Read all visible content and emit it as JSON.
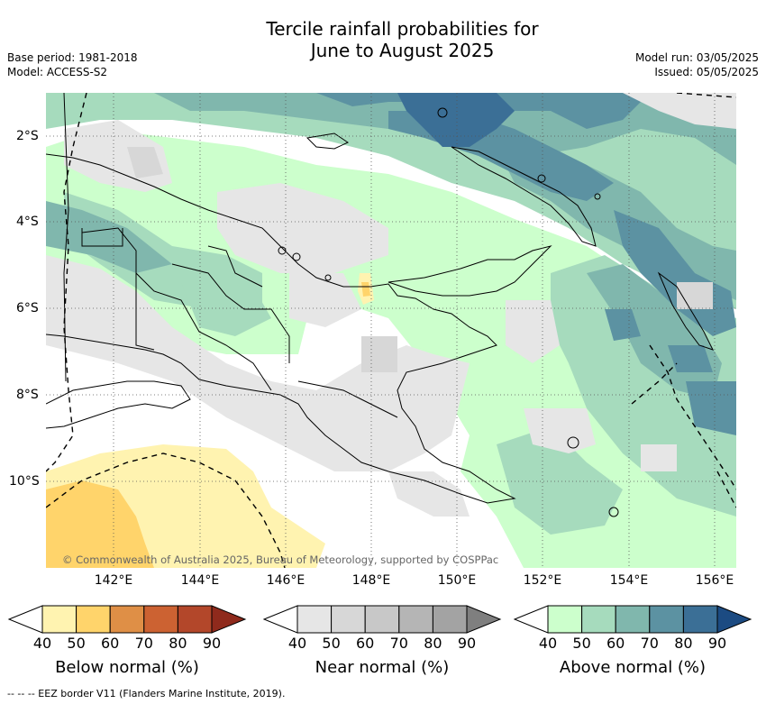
{
  "title_line1": "Tercile rainfall probabilities for",
  "title_line2": "June to August 2025",
  "base_period": "Base period: 1981-2018",
  "model": "Model: ACCESS-S2",
  "model_run": "Model run: 03/05/2025",
  "issued": "Issued: 05/05/2025",
  "copyright": "© Commonwealth of Australia 2025, Bureau of Meteorology, supported by COSPPac",
  "lat_ticks": [
    "2°S",
    "4°S",
    "6°S",
    "8°S",
    "10°S"
  ],
  "lon_ticks": [
    "142°E",
    "144°E",
    "146°E",
    "148°E",
    "150°E",
    "152°E",
    "154°E",
    "156°E"
  ],
  "colorbars": {
    "below": {
      "label": "Below normal (%)",
      "ticks": [
        "40",
        "50",
        "60",
        "70",
        "80",
        "90"
      ],
      "colors": [
        "#fff3b0",
        "#ffd46b",
        "#df8f46",
        "#cc6232",
        "#b3472a",
        "#8f2a1c"
      ]
    },
    "near": {
      "label": "Near normal (%)",
      "ticks": [
        "40",
        "50",
        "60",
        "70",
        "80",
        "90"
      ],
      "colors": [
        "#e6e6e6",
        "#d7d7d7",
        "#c8c8c8",
        "#b5b5b5",
        "#a3a3a3",
        "#7f7f7f"
      ]
    },
    "above": {
      "label": "Above normal (%)",
      "ticks": [
        "40",
        "50",
        "60",
        "70",
        "80",
        "90"
      ],
      "colors": [
        "#ccffcc",
        "#a6dbbd",
        "#80b7ad",
        "#5c92a2",
        "#3b6f96",
        "#1c4b82"
      ]
    }
  },
  "footnote": "-- -- -- EEZ border V11 (Flanders Marine Institute, 2019)."
}
